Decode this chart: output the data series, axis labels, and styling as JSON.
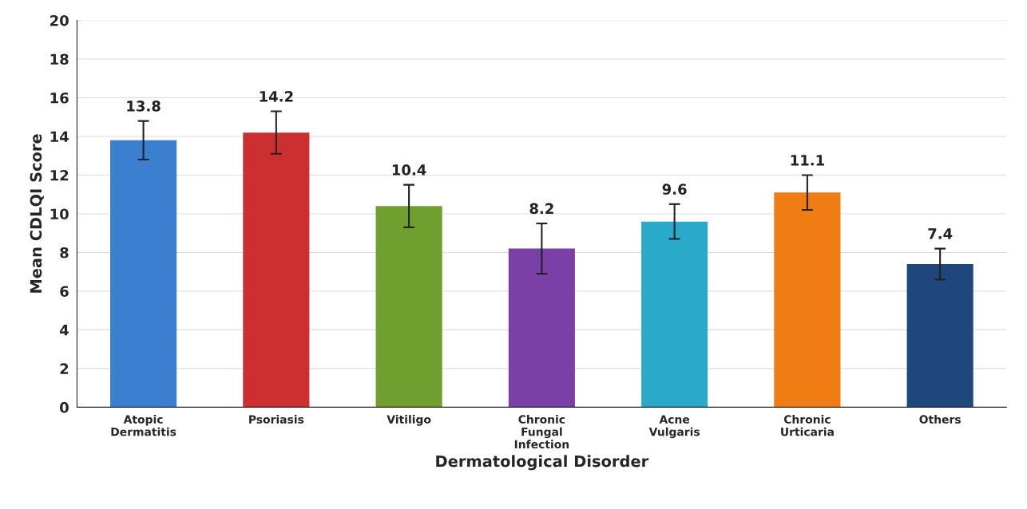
{
  "chart_data": {
    "type": "bar",
    "xlabel": "Dermatological Disorder",
    "ylabel": "Mean CDLQI Score",
    "categories": [
      "Atopic\nDermatitis",
      "Psoriasis",
      "Vitiligo",
      "Chronic\nFungal\nInfection",
      "Acne\nVulgaris",
      "Chronic\nUrticaria",
      "Others"
    ],
    "values": [
      13.8,
      14.2,
      10.4,
      8.2,
      9.6,
      11.1,
      7.4
    ],
    "errors": [
      1.0,
      1.1,
      1.1,
      1.3,
      0.9,
      0.9,
      0.8
    ],
    "colors": [
      "#3a7fd0",
      "#cc2f2f",
      "#6f9f2e",
      "#7b3fa8",
      "#2aa9c9",
      "#f07d14",
      "#1f477e"
    ],
    "ylim": [
      0,
      20
    ],
    "yticks": [
      0,
      2,
      4,
      6,
      8,
      10,
      12,
      14,
      16,
      18,
      20
    ],
    "grid": "y",
    "data_labels": true
  }
}
